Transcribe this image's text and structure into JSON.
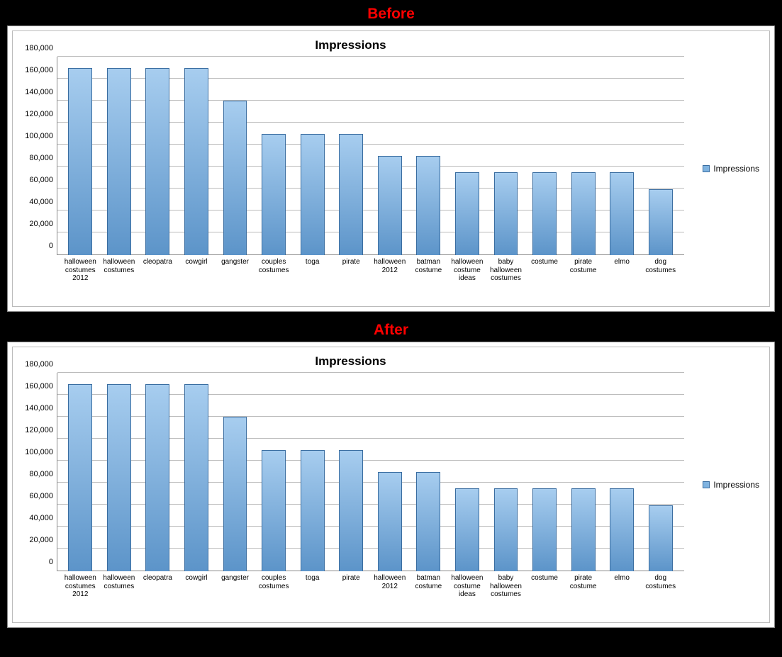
{
  "labels": {
    "before": "Before",
    "after": "After",
    "label_color": "#ff0000"
  },
  "chart": {
    "type": "bar",
    "title": "Impressions",
    "title_fontsize": 17,
    "title_fontweight": "bold",
    "legend_label": "Impressions",
    "legend_swatch_color": "#7fb3e0",
    "bar_gradient_top": "#a7cdef",
    "bar_gradient_bottom": "#5c94c9",
    "bar_border_color": "#3a6da0",
    "grid_color": "#bbbbbb",
    "axis_color": "#888888",
    "background_color": "#ffffff",
    "ylim": [
      0,
      180000
    ],
    "ytick_step": 20000,
    "yticks": [
      0,
      20000,
      40000,
      60000,
      80000,
      100000,
      120000,
      140000,
      160000,
      180000
    ],
    "ytick_labels": [
      "0",
      "20,000",
      "40,000",
      "60,000",
      "80,000",
      "100,000",
      "120,000",
      "140,000",
      "160,000",
      "180,000"
    ],
    "categories": [
      "halloween costumes 2012",
      "halloween costumes",
      "cleopatra",
      "cowgirl",
      "gangster",
      "couples costumes",
      "toga",
      "pirate",
      "halloween 2012",
      "batman costume",
      "halloween costume ideas",
      "baby halloween costumes",
      "costume",
      "pirate costume",
      "elmo",
      "dog costumes"
    ],
    "values": [
      170000,
      170000,
      170000,
      170000,
      140000,
      110000,
      110000,
      110000,
      90000,
      90000,
      75000,
      75000,
      75000,
      75000,
      75000,
      60000
    ],
    "bar_width": 0.62,
    "xlabel_fontsize": 10,
    "ytick_fontsize": 11
  },
  "panel_border_color": "#888888",
  "inner_border_color": "#bbbbbb",
  "page_background": "#000000"
}
